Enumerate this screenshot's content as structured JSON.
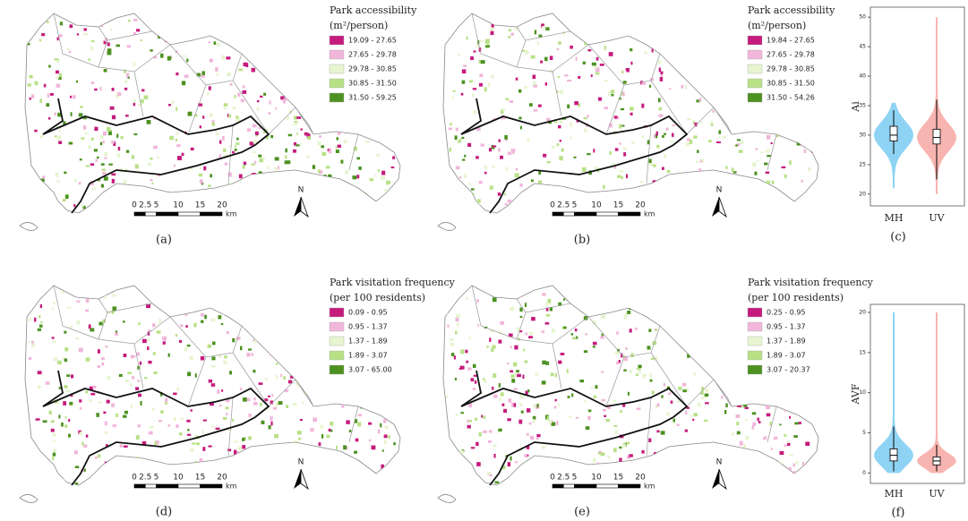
{
  "panels": [
    {
      "label": "(a)",
      "legend": {
        "title": "Park accessibility",
        "unit": "(m²/person)",
        "items": [
          {
            "label": "19.09 - 27.65",
            "color": "#c51b7d"
          },
          {
            "label": "27.65 - 29.78",
            "color": "#f1b6da"
          },
          {
            "label": "29.78 - 30.85",
            "color": "#e6f5d0"
          },
          {
            "label": "30.85 - 31.50",
            "color": "#b8e186"
          },
          {
            "label": "31.50 - 59.25",
            "color": "#4d9221"
          }
        ]
      },
      "scale_bar": {
        "ticks": [
          "0",
          "2.5",
          "5",
          "10",
          "15",
          "20"
        ],
        "unit": "km"
      },
      "north": "N"
    },
    {
      "label": "(b)",
      "legend": {
        "title": "Park accessibility",
        "unit": "(m²/person)",
        "items": [
          {
            "label": "19.84 - 27.65",
            "color": "#c51b7d"
          },
          {
            "label": "27.65 - 29.78",
            "color": "#f1b6da"
          },
          {
            "label": "29.78 - 30.85",
            "color": "#e6f5d0"
          },
          {
            "label": "30.85 - 31.50",
            "color": "#b8e186"
          },
          {
            "label": "31.50 - 54.26",
            "color": "#4d9221"
          }
        ]
      },
      "scale_bar": {
        "ticks": [
          "0",
          "2.5",
          "5",
          "10",
          "15",
          "20"
        ],
        "unit": "km"
      },
      "north": "N"
    },
    {
      "label": "(d)",
      "legend": {
        "title": "Park visitation frequency",
        "unit": "(per 100 residents)",
        "items": [
          {
            "label": "0.09 - 0.95",
            "color": "#c51b7d"
          },
          {
            "label": "0.95 - 1.37",
            "color": "#f1b6da"
          },
          {
            "label": "1.37 - 1.89",
            "color": "#e6f5d0"
          },
          {
            "label": "1.89 - 3.07",
            "color": "#b8e186"
          },
          {
            "label": "3.07 - 65.00",
            "color": "#4d9221"
          }
        ]
      },
      "scale_bar": {
        "ticks": [
          "0",
          "2.5",
          "5",
          "10",
          "15",
          "20"
        ],
        "unit": "km"
      },
      "north": "N"
    },
    {
      "label": "(e)",
      "legend": {
        "title": "Park visitation frequency",
        "unit": "(per 100 residents)",
        "items": [
          {
            "label": "0.25 - 0.95",
            "color": "#c51b7d"
          },
          {
            "label": "0.95 - 1.37",
            "color": "#f1b6da"
          },
          {
            "label": "1.37 - 1.89",
            "color": "#e6f5d0"
          },
          {
            "label": "1.89 - 3.07",
            "color": "#b8e186"
          },
          {
            "label": "3.07 - 20.37",
            "color": "#4d9221"
          }
        ]
      },
      "scale_bar": {
        "ticks": [
          "0",
          "2.5",
          "5",
          "10",
          "15",
          "20"
        ],
        "unit": "km"
      },
      "north": "N"
    }
  ],
  "chart_data": [
    {
      "type": "violin",
      "label": "(c)",
      "y_label": "Ai",
      "categories": [
        "MH",
        "UV"
      ],
      "ylim": [
        18,
        51.7
      ],
      "yticks": [
        20,
        25,
        30,
        35,
        40,
        45,
        50
      ],
      "series": [
        {
          "name": "MH",
          "color": "#8fd3f4",
          "min": 21,
          "whisker_low": 26.8,
          "q1": 29,
          "median": 30,
          "q3": 31.5,
          "whisker_high": 34.2,
          "max": 35.5
        },
        {
          "name": "UV",
          "color": "#f8b4b0",
          "min": 20,
          "whisker_low": 22.5,
          "q1": 28.5,
          "median": 29.6,
          "q3": 31,
          "whisker_high": 36,
          "max": 50
        }
      ]
    },
    {
      "type": "violin",
      "label": "(f)",
      "y_label": "AVF",
      "categories": [
        "MH",
        "UV"
      ],
      "ylim": [
        -1.3,
        21
      ],
      "yticks": [
        0,
        5,
        10,
        15,
        20
      ],
      "series": [
        {
          "name": "MH",
          "color": "#8fd3f4",
          "min": 0,
          "whisker_low": 0.2,
          "q1": 1.5,
          "median": 2.2,
          "q3": 3,
          "whisker_high": 5.8,
          "max": 20
        },
        {
          "name": "UV",
          "color": "#f8b4b0",
          "min": 0,
          "whisker_low": 0.2,
          "q1": 1,
          "median": 1.5,
          "q3": 2,
          "whisker_high": 3.5,
          "max": 20
        }
      ]
    }
  ]
}
